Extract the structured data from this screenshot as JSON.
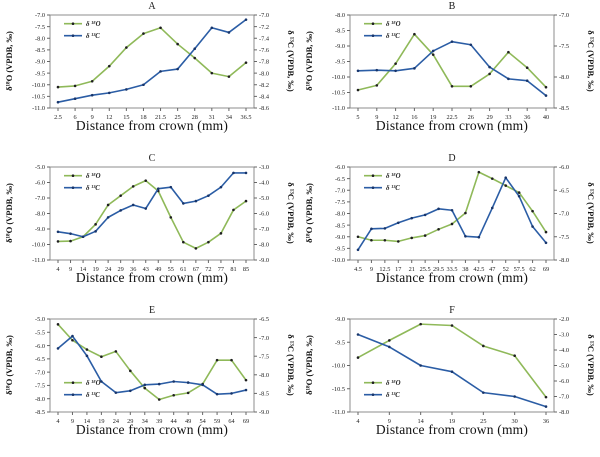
{
  "page": {
    "background": "#ffffff"
  },
  "shared": {
    "xlabel": "Distance from crown (mm)",
    "ylabel_left": "δ¹⁸O (VPDB, ‰)",
    "ylabel_right": "δ ¹³C (VPDB, ‰)",
    "legend": [
      "δ ¹⁸O",
      "δ ¹³C"
    ],
    "colors": {
      "d18O_line": "#8fb959",
      "d13C_line": "#2b5da5",
      "d18O_marker": "#1f1f1f",
      "d13C_marker": "#17356b",
      "axis_frame": "#8c8c8c",
      "tick_mark": "#666666",
      "tick_text": "#222222"
    }
  },
  "chart_data": [
    {
      "type": "line",
      "title": "A",
      "x_categories": [
        "2.5",
        "6",
        "9",
        "12",
        "15",
        "18",
        "21.5",
        "25",
        "28",
        "31",
        "34",
        "36.5"
      ],
      "series": [
        {
          "name": "δ ¹⁸O",
          "axis": "left",
          "values": [
            -10.1,
            -10.05,
            -9.85,
            -9.2,
            -8.4,
            -7.8,
            -7.55,
            -8.25,
            -8.85,
            -9.5,
            -9.65,
            -9.05
          ]
        },
        {
          "name": "δ ¹³C",
          "axis": "right",
          "values": [
            -8.5,
            -8.44,
            -8.38,
            -8.34,
            -8.28,
            -8.2,
            -7.97,
            -7.93,
            -7.58,
            -7.22,
            -7.3,
            -7.08
          ]
        }
      ],
      "left_ylim": [
        -11.0,
        -7.0
      ],
      "left_ticks": [
        "-7.0",
        "-7.5",
        "-8.0",
        "-8.5",
        "-9.0",
        "-9.5",
        "-10.0",
        "-10.5",
        "-11.0"
      ],
      "right_ylim": [
        -8.6,
        -7.0
      ],
      "right_ticks": [
        "-7.0",
        "-7.2",
        "-7.4",
        "-7.6",
        "-7.8",
        "-8.0",
        "-8.2",
        "-8.4",
        "-8.6"
      ],
      "legend_position": "top-left"
    },
    {
      "type": "line",
      "title": "B",
      "x_categories": [
        "5",
        "9",
        "12",
        "16",
        "19",
        "22.5",
        "26",
        "29",
        "33",
        "36",
        "40"
      ],
      "series": [
        {
          "name": "δ ¹⁸O",
          "axis": "left",
          "values": [
            -10.42,
            -10.27,
            -9.57,
            -8.62,
            -9.28,
            -10.3,
            -10.3,
            -9.9,
            -9.2,
            -9.7,
            -10.33
          ]
        },
        {
          "name": "δ ¹³C",
          "axis": "right",
          "values": [
            -7.9,
            -7.89,
            -7.9,
            -7.86,
            -7.58,
            -7.43,
            -7.48,
            -7.84,
            -8.03,
            -8.06,
            -8.3
          ]
        }
      ],
      "left_ylim": [
        -11.0,
        -8.0
      ],
      "left_ticks": [
        "-8.0",
        "-8.5",
        "-9.0",
        "-9.5",
        "-10.0",
        "-10.5",
        "-11.0"
      ],
      "right_ylim": [
        -8.5,
        -7.0
      ],
      "right_ticks": [
        "-7.0",
        "-7.5",
        "-8.0",
        "-8.5"
      ],
      "legend_position": "top-left"
    },
    {
      "type": "line",
      "title": "C",
      "x_categories": [
        "4",
        "9",
        "14",
        "19",
        "24",
        "29",
        "36",
        "43",
        "49",
        "55",
        "61",
        "67",
        "72",
        "77",
        "81",
        "85"
      ],
      "series": [
        {
          "name": "δ ¹⁸O",
          "axis": "left",
          "values": [
            -9.8,
            -9.78,
            -9.5,
            -8.7,
            -7.45,
            -6.85,
            -6.25,
            -5.88,
            -6.55,
            -8.25,
            -9.85,
            -10.25,
            -9.85,
            -9.28,
            -7.77,
            -7.2
          ]
        },
        {
          "name": "δ ¹³C",
          "axis": "right",
          "values": [
            -7.18,
            -7.3,
            -7.5,
            -7.15,
            -6.25,
            -5.8,
            -5.45,
            -5.68,
            -4.4,
            -4.3,
            -5.35,
            -5.2,
            -4.85,
            -4.3,
            -3.38,
            -3.38
          ]
        }
      ],
      "left_ylim": [
        -11.0,
        -5.0
      ],
      "left_ticks": [
        "-5.0",
        "-6.0",
        "-7.0",
        "-8.0",
        "-9.0",
        "-10.0",
        "-11.0"
      ],
      "right_ylim": [
        -9.0,
        -3.0
      ],
      "right_ticks": [
        "-3.0",
        "-4.0",
        "-5.0",
        "-6.0",
        "-7.0",
        "-8.0",
        "-9.0"
      ],
      "legend_position": "top-left"
    },
    {
      "type": "line",
      "title": "D",
      "x_categories": [
        "4.5",
        "9",
        "12.5",
        "17",
        "21",
        "25.5",
        "29.5",
        "33.5",
        "38",
        "42.5",
        "47",
        "52",
        "57.5",
        "62",
        "69"
      ],
      "series": [
        {
          "name": "δ ¹⁸O",
          "axis": "left",
          "values": [
            -9.0,
            -9.15,
            -9.15,
            -9.2,
            -9.05,
            -8.95,
            -8.68,
            -8.45,
            -7.98,
            -6.22,
            -6.5,
            -6.8,
            -7.1,
            -7.9,
            -8.8
          ]
        },
        {
          "name": "δ ¹³C",
          "axis": "right",
          "values": [
            -7.78,
            -7.33,
            -7.32,
            -7.2,
            -7.1,
            -7.03,
            -6.9,
            -6.93,
            -7.49,
            -7.51,
            -6.88,
            -6.23,
            -6.63,
            -7.28,
            -7.63
          ]
        }
      ],
      "left_ylim": [
        -10.0,
        -6.0
      ],
      "left_ticks": [
        "-6.0",
        "-6.5",
        "-7.0",
        "-7.5",
        "-8.0",
        "-8.5",
        "-9.0",
        "-9.5",
        "-10.0"
      ],
      "right_ylim": [
        -8.0,
        -6.0
      ],
      "right_ticks": [
        "-6.0",
        "-6.5",
        "-7.0",
        "-7.5",
        "-8.0"
      ],
      "legend_position": "top-left"
    },
    {
      "type": "line",
      "title": "E",
      "x_categories": [
        "4",
        "9",
        "14",
        "19",
        "24",
        "29",
        "34",
        "39",
        "44",
        "49",
        "54",
        "59",
        "64",
        "69"
      ],
      "series": [
        {
          "name": "δ ¹⁸O",
          "axis": "left",
          "values": [
            -5.2,
            -5.8,
            -6.15,
            -6.42,
            -6.22,
            -6.95,
            -7.6,
            -8.03,
            -7.87,
            -7.78,
            -7.45,
            -6.55,
            -6.55,
            -7.3
          ]
        },
        {
          "name": "δ ¹³C",
          "axis": "right",
          "values": [
            -7.29,
            -6.96,
            -7.49,
            -8.18,
            -8.48,
            -8.43,
            -8.27,
            -8.25,
            -8.18,
            -8.21,
            -8.27,
            -8.52,
            -8.5,
            -8.41
          ]
        }
      ],
      "left_ylim": [
        -8.5,
        -5.0
      ],
      "left_ticks": [
        "-5.0",
        "-5.5",
        "-6.0",
        "-6.5",
        "-7.0",
        "-7.5",
        "-8.0",
        "-8.5"
      ],
      "right_ylim": [
        -9.0,
        -6.5
      ],
      "right_ticks": [
        "-6.5",
        "-7.0",
        "-7.5",
        "-8.0",
        "-8.5",
        "-9.0"
      ],
      "legend_position": "bottom-left"
    },
    {
      "type": "line",
      "title": "F",
      "x_categories": [
        "4",
        "9",
        "14",
        "19",
        "25",
        "30",
        "36"
      ],
      "series": [
        {
          "name": "δ ¹⁸O",
          "axis": "left",
          "values": [
            -9.83,
            -9.46,
            -9.11,
            -9.14,
            -9.58,
            -9.79,
            -10.68
          ]
        },
        {
          "name": "δ ¹³C",
          "axis": "right",
          "values": [
            -3.0,
            -3.8,
            -5.0,
            -5.4,
            -6.75,
            -7.0,
            -7.65
          ]
        }
      ],
      "left_ylim": [
        -11.0,
        -9.0
      ],
      "left_ticks": [
        "-9.0",
        "-9.5",
        "-10.0",
        "-10.5",
        "-11.0"
      ],
      "right_ylim": [
        -8.0,
        -2.0
      ],
      "right_ticks": [
        "-2.0",
        "-3.0",
        "-4.0",
        "-5.0",
        "-6.0",
        "-7.0",
        "-8.0"
      ],
      "legend_position": "bottom-left"
    }
  ]
}
